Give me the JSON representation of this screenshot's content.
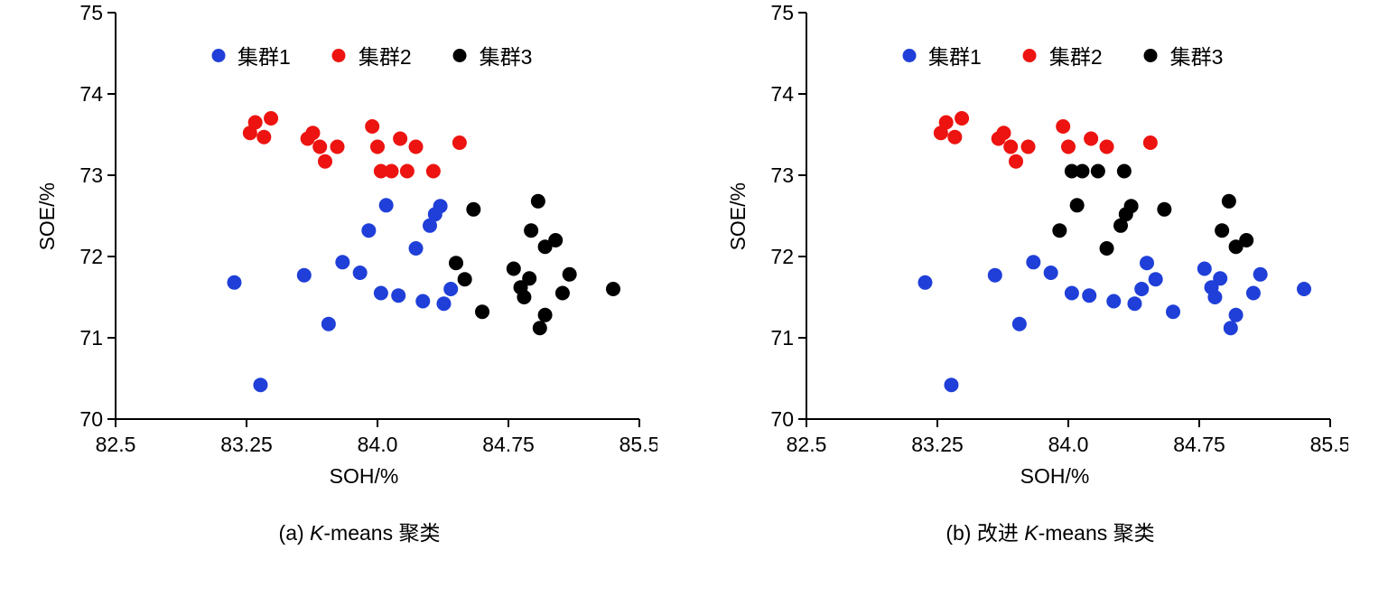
{
  "colors": {
    "cluster1": "#1f3fd8",
    "cluster2": "#ec1310",
    "cluster3": "#000000",
    "axis": "#000000"
  },
  "legend": {
    "items": [
      "集群1",
      "集群2",
      "集群3"
    ]
  },
  "chart_data": [
    {
      "type": "scatter",
      "title": "",
      "xlabel": "SOH/%",
      "ylabel": "SOE/%",
      "xlim": [
        82.5,
        85.5
      ],
      "ylim": [
        70,
        75
      ],
      "xticks": [
        82.5,
        83.25,
        84.0,
        84.75,
        85.5
      ],
      "xtick_labels": [
        "82.5",
        "83.25",
        "84.0",
        "84.75",
        "85.5"
      ],
      "yticks": [
        70,
        71,
        72,
        73,
        74,
        75
      ],
      "ytick_labels": [
        "70",
        "71",
        "72",
        "73",
        "74",
        "75"
      ],
      "grid": false,
      "legend_position": "top-inside",
      "caption": {
        "pre": "(a) ",
        "italic": "K",
        "post": "-means 聚类"
      },
      "series": [
        {
          "name": "集群1",
          "color": "#1f3fd8",
          "points": [
            [
              83.18,
              71.68
            ],
            [
              83.33,
              70.42
            ],
            [
              83.58,
              71.77
            ],
            [
              83.72,
              71.17
            ],
            [
              83.8,
              71.93
            ],
            [
              83.9,
              71.8
            ],
            [
              83.95,
              72.32
            ],
            [
              84.02,
              71.55
            ],
            [
              84.05,
              72.63
            ],
            [
              84.12,
              71.52
            ],
            [
              84.22,
              72.1
            ],
            [
              84.26,
              71.45
            ],
            [
              84.3,
              72.38
            ],
            [
              84.33,
              72.52
            ],
            [
              84.36,
              72.62
            ],
            [
              84.38,
              71.42
            ],
            [
              84.42,
              71.6
            ]
          ]
        },
        {
          "name": "集群2",
          "color": "#ec1310",
          "points": [
            [
              83.27,
              73.52
            ],
            [
              83.3,
              73.65
            ],
            [
              83.35,
              73.47
            ],
            [
              83.39,
              73.7
            ],
            [
              83.6,
              73.45
            ],
            [
              83.63,
              73.52
            ],
            [
              83.67,
              73.35
            ],
            [
              83.7,
              73.17
            ],
            [
              83.77,
              73.35
            ],
            [
              83.97,
              73.6
            ],
            [
              84.0,
              73.35
            ],
            [
              84.02,
              73.05
            ],
            [
              84.08,
              73.05
            ],
            [
              84.13,
              73.45
            ],
            [
              84.17,
              73.05
            ],
            [
              84.22,
              73.35
            ],
            [
              84.32,
              73.05
            ],
            [
              84.47,
              73.4
            ]
          ]
        },
        {
          "name": "集群3",
          "color": "#000000",
          "points": [
            [
              84.45,
              71.92
            ],
            [
              84.5,
              71.72
            ],
            [
              84.55,
              72.58
            ],
            [
              84.6,
              71.32
            ],
            [
              84.78,
              71.85
            ],
            [
              84.82,
              71.62
            ],
            [
              84.84,
              71.5
            ],
            [
              84.87,
              71.73
            ],
            [
              84.88,
              72.32
            ],
            [
              84.92,
              72.68
            ],
            [
              84.93,
              71.12
            ],
            [
              84.96,
              71.28
            ],
            [
              84.96,
              72.12
            ],
            [
              85.02,
              72.2
            ],
            [
              85.06,
              71.55
            ],
            [
              85.1,
              71.78
            ],
            [
              85.35,
              71.6
            ]
          ]
        }
      ]
    },
    {
      "type": "scatter",
      "title": "",
      "xlabel": "SOH/%",
      "ylabel": "SOE/%",
      "xlim": [
        82.5,
        85.5
      ],
      "ylim": [
        70,
        75
      ],
      "xticks": [
        82.5,
        83.25,
        84.0,
        84.75,
        85.5
      ],
      "xtick_labels": [
        "82.5",
        "83.25",
        "84.0",
        "84.75",
        "85.5"
      ],
      "yticks": [
        70,
        71,
        72,
        73,
        74,
        75
      ],
      "ytick_labels": [
        "70",
        "71",
        "72",
        "73",
        "74",
        "75"
      ],
      "grid": false,
      "legend_position": "top-inside",
      "caption": {
        "pre": "(b) 改进 ",
        "italic": "K",
        "post": "-means 聚类"
      },
      "series": [
        {
          "name": "集群1",
          "color": "#1f3fd8",
          "points": [
            [
              83.18,
              71.68
            ],
            [
              83.33,
              70.42
            ],
            [
              83.58,
              71.77
            ],
            [
              83.72,
              71.17
            ],
            [
              83.8,
              71.93
            ],
            [
              83.9,
              71.8
            ],
            [
              84.02,
              71.55
            ],
            [
              84.12,
              71.52
            ],
            [
              84.26,
              71.45
            ],
            [
              84.38,
              71.42
            ],
            [
              84.42,
              71.6
            ],
            [
              84.45,
              71.92
            ],
            [
              84.5,
              71.72
            ],
            [
              84.6,
              71.32
            ],
            [
              84.78,
              71.85
            ],
            [
              84.82,
              71.62
            ],
            [
              84.84,
              71.5
            ],
            [
              84.87,
              71.73
            ],
            [
              84.93,
              71.12
            ],
            [
              84.96,
              71.28
            ],
            [
              85.06,
              71.55
            ],
            [
              85.1,
              71.78
            ],
            [
              85.35,
              71.6
            ]
          ]
        },
        {
          "name": "集群2",
          "color": "#ec1310",
          "points": [
            [
              83.27,
              73.52
            ],
            [
              83.3,
              73.65
            ],
            [
              83.35,
              73.47
            ],
            [
              83.39,
              73.7
            ],
            [
              83.6,
              73.45
            ],
            [
              83.63,
              73.52
            ],
            [
              83.67,
              73.35
            ],
            [
              83.7,
              73.17
            ],
            [
              83.77,
              73.35
            ],
            [
              83.97,
              73.6
            ],
            [
              84.0,
              73.35
            ],
            [
              84.13,
              73.45
            ],
            [
              84.22,
              73.35
            ],
            [
              84.47,
              73.4
            ]
          ]
        },
        {
          "name": "集群3",
          "color": "#000000",
          "points": [
            [
              83.95,
              72.32
            ],
            [
              84.02,
              73.05
            ],
            [
              84.05,
              72.63
            ],
            [
              84.08,
              73.05
            ],
            [
              84.17,
              73.05
            ],
            [
              84.22,
              72.1
            ],
            [
              84.3,
              72.38
            ],
            [
              84.32,
              73.05
            ],
            [
              84.33,
              72.52
            ],
            [
              84.36,
              72.62
            ],
            [
              84.55,
              72.58
            ],
            [
              84.88,
              72.32
            ],
            [
              84.92,
              72.68
            ],
            [
              84.96,
              72.12
            ],
            [
              85.02,
              72.2
            ]
          ]
        }
      ]
    }
  ]
}
